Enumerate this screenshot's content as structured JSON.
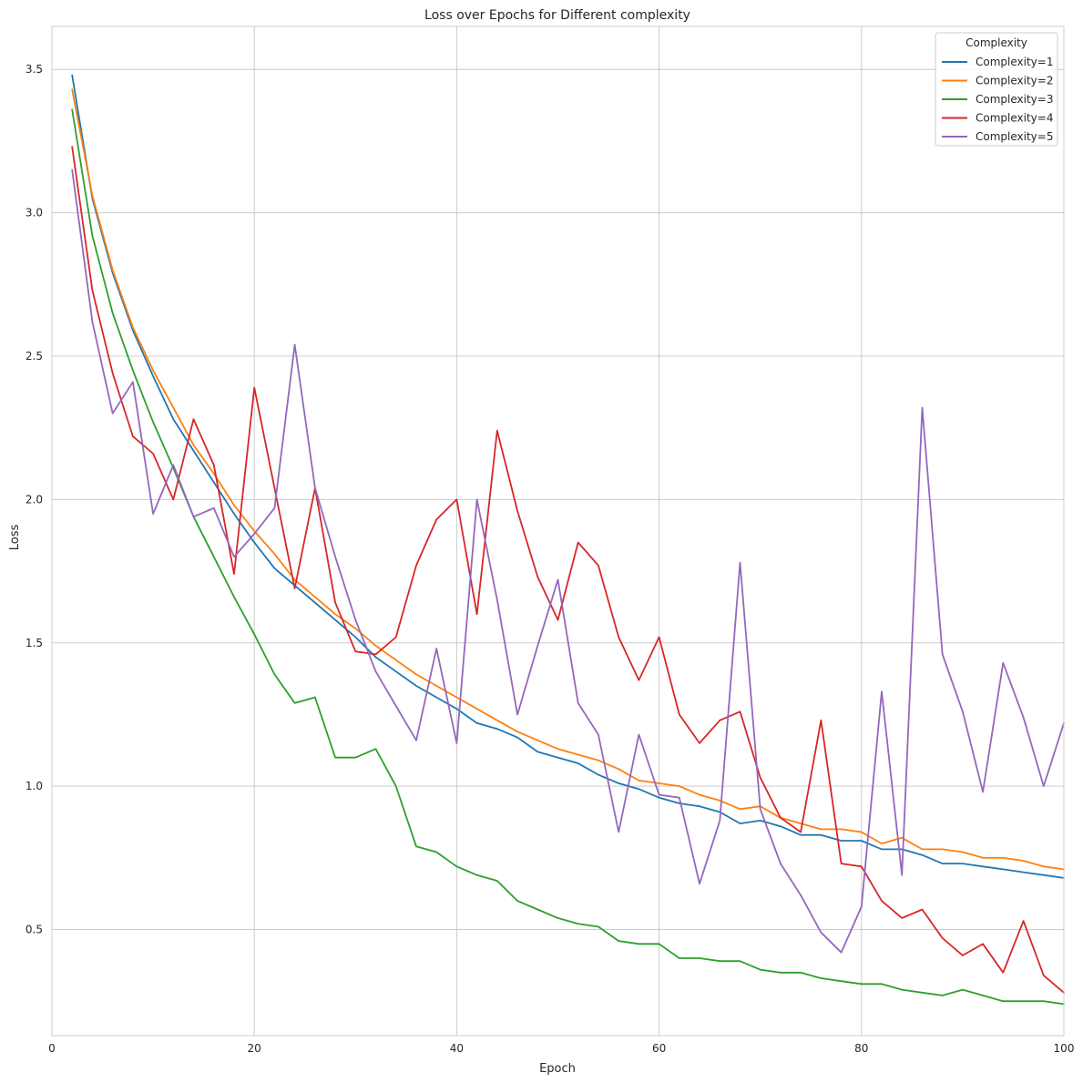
{
  "chart_data": {
    "type": "line",
    "title": "Loss over Epochs for Different complexity",
    "xlabel": "Epoch",
    "ylabel": "Loss",
    "xlim": [
      0,
      100
    ],
    "ylim": [
      0.13,
      3.65
    ],
    "xticks": [
      0,
      20,
      40,
      60,
      80,
      100
    ],
    "yticks": [
      0.5,
      1.0,
      1.5,
      2.0,
      2.5,
      3.0,
      3.5
    ],
    "xtick_labels": [
      "0",
      "20",
      "40",
      "60",
      "80",
      "100"
    ],
    "ytick_labels": [
      "0.5",
      "1.0",
      "1.5",
      "2.0",
      "2.5",
      "3.0",
      "3.5"
    ],
    "grid": true,
    "legend": {
      "title": "Complexity",
      "placement": "top-right"
    },
    "x": [
      2,
      4,
      6,
      8,
      10,
      12,
      14,
      16,
      18,
      20,
      22,
      24,
      26,
      28,
      30,
      32,
      34,
      36,
      38,
      40,
      42,
      44,
      46,
      48,
      50,
      52,
      54,
      56,
      58,
      60,
      62,
      64,
      66,
      68,
      70,
      72,
      74,
      76,
      78,
      80,
      82,
      84,
      86,
      88,
      90,
      92,
      94,
      96,
      98,
      100
    ],
    "series": [
      {
        "name": "Complexity=1",
        "color": "#1f77b4",
        "values": [
          3.48,
          3.05,
          2.79,
          2.59,
          2.43,
          2.28,
          2.17,
          2.06,
          1.95,
          1.85,
          1.76,
          1.7,
          1.64,
          1.58,
          1.52,
          1.45,
          1.4,
          1.35,
          1.31,
          1.27,
          1.22,
          1.2,
          1.17,
          1.12,
          1.1,
          1.08,
          1.04,
          1.01,
          0.99,
          0.96,
          0.94,
          0.93,
          0.91,
          0.87,
          0.88,
          0.86,
          0.83,
          0.83,
          0.81,
          0.81,
          0.78,
          0.78,
          0.76,
          0.73,
          0.73,
          0.72,
          0.71,
          0.7,
          0.69,
          0.68
        ]
      },
      {
        "name": "Complexity=2",
        "color": "#ff7f0e",
        "values": [
          3.43,
          3.06,
          2.8,
          2.6,
          2.45,
          2.32,
          2.19,
          2.09,
          1.98,
          1.89,
          1.81,
          1.72,
          1.66,
          1.6,
          1.55,
          1.49,
          1.44,
          1.39,
          1.35,
          1.31,
          1.27,
          1.23,
          1.19,
          1.16,
          1.13,
          1.11,
          1.09,
          1.06,
          1.02,
          1.01,
          1.0,
          0.97,
          0.95,
          0.92,
          0.93,
          0.89,
          0.87,
          0.85,
          0.85,
          0.84,
          0.8,
          0.82,
          0.78,
          0.78,
          0.77,
          0.75,
          0.75,
          0.74,
          0.72,
          0.71
        ]
      },
      {
        "name": "Complexity=3",
        "color": "#2ca02c",
        "values": [
          3.36,
          2.92,
          2.65,
          2.45,
          2.27,
          2.11,
          1.94,
          1.8,
          1.66,
          1.53,
          1.39,
          1.29,
          1.31,
          1.1,
          1.1,
          1.13,
          1.0,
          0.79,
          0.77,
          0.72,
          0.69,
          0.67,
          0.6,
          0.57,
          0.54,
          0.52,
          0.51,
          0.46,
          0.45,
          0.45,
          0.4,
          0.4,
          0.39,
          0.39,
          0.36,
          0.35,
          0.35,
          0.33,
          0.32,
          0.31,
          0.31,
          0.29,
          0.28,
          0.27,
          0.29,
          0.27,
          0.25,
          0.25,
          0.25,
          0.24
        ]
      },
      {
        "name": "Complexity=4",
        "color": "#d62728",
        "values": [
          3.23,
          2.73,
          2.44,
          2.22,
          2.16,
          2.0,
          2.28,
          2.12,
          1.74,
          2.39,
          2.04,
          1.69,
          2.04,
          1.64,
          1.47,
          1.46,
          1.52,
          1.77,
          1.93,
          2.0,
          1.6,
          2.24,
          1.96,
          1.73,
          1.58,
          1.85,
          1.77,
          1.52,
          1.37,
          1.52,
          1.25,
          1.15,
          1.23,
          1.26,
          1.03,
          0.89,
          0.84,
          1.23,
          0.73,
          0.72,
          0.6,
          0.54,
          0.57,
          0.47,
          0.41,
          0.45,
          0.35,
          0.53,
          0.34,
          0.28
        ]
      },
      {
        "name": "Complexity=5",
        "color": "#9467bd",
        "values": [
          3.15,
          2.62,
          2.3,
          2.41,
          1.95,
          2.12,
          1.94,
          1.97,
          1.8,
          1.88,
          1.97,
          2.54,
          2.04,
          1.8,
          1.58,
          1.4,
          1.28,
          1.16,
          1.48,
          1.15,
          2.0,
          1.65,
          1.25,
          1.49,
          1.72,
          1.29,
          1.18,
          0.84,
          1.18,
          0.97,
          0.96,
          0.66,
          0.88,
          1.78,
          0.92,
          0.73,
          0.62,
          0.49,
          0.42,
          0.58,
          1.33,
          0.69,
          2.32,
          1.46,
          1.26,
          0.98,
          1.43,
          1.24,
          1.0,
          1.22
        ]
      }
    ]
  }
}
